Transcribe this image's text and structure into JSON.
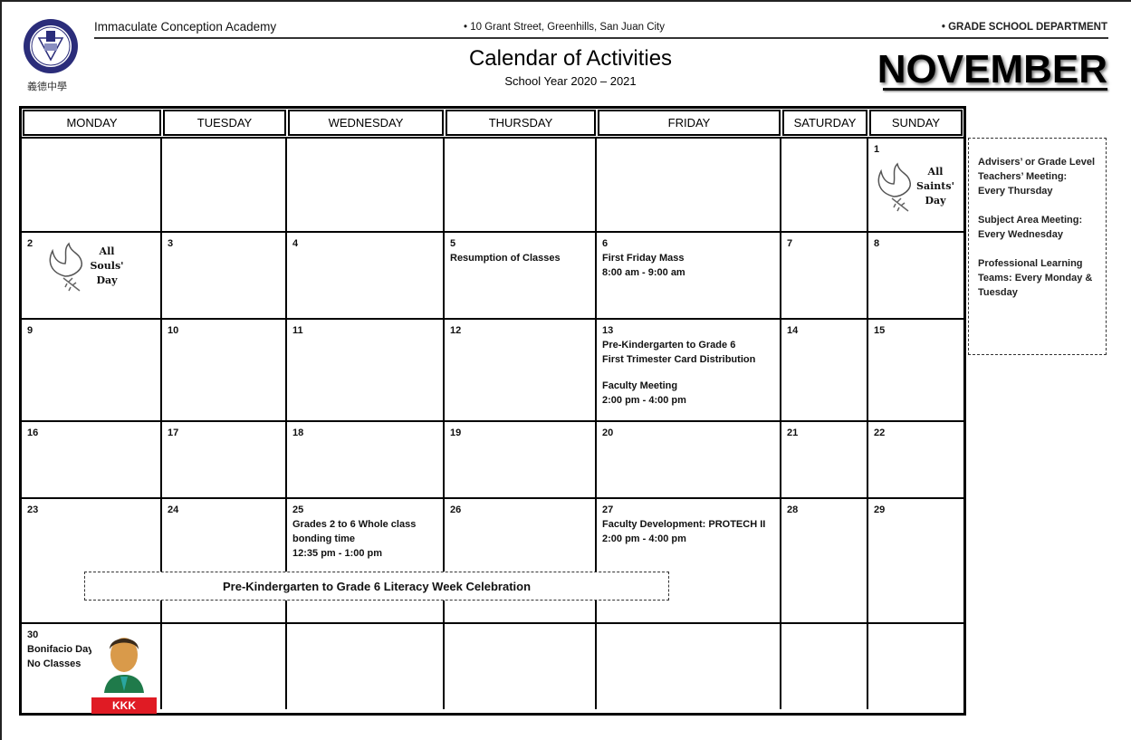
{
  "header": {
    "school_name": "Immaculate Conception Academy",
    "logo_chinese_text": "義德中學",
    "address": "• 10 Grant Street, Greenhills, San Juan City",
    "department": "• GRADE SCHOOL DEPARTMENT",
    "title": "Calendar of Activities",
    "subtitle": "School Year 2020 – 2021",
    "month": "NOVEMBER"
  },
  "calendar": {
    "days": [
      "MONDAY",
      "TUESDAY",
      "WEDNESDAY",
      "THURSDAY",
      "FRIDAY",
      "SATURDAY",
      "SUNDAY"
    ],
    "weeks": [
      [
        {
          "day": ""
        },
        {
          "day": ""
        },
        {
          "day": ""
        },
        {
          "day": ""
        },
        {
          "day": ""
        },
        {
          "day": ""
        },
        {
          "day": "1",
          "image": "dove-icon",
          "image_label": "All Saints' Day"
        }
      ],
      [
        {
          "day": "2",
          "image": "dove-icon",
          "image_label": "All Souls' Day"
        },
        {
          "day": "3"
        },
        {
          "day": "4"
        },
        {
          "day": "5",
          "events": [
            [
              "Resumption of Classes"
            ]
          ]
        },
        {
          "day": "6",
          "events": [
            [
              "First Friday Mass",
              "8:00 am - 9:00 am"
            ]
          ]
        },
        {
          "day": "7"
        },
        {
          "day": "8"
        }
      ],
      [
        {
          "day": "9"
        },
        {
          "day": "10"
        },
        {
          "day": "11"
        },
        {
          "day": "12"
        },
        {
          "day": "13",
          "events": [
            [
              "Pre-Kindergarten to Grade 6",
              "First Trimester Card Distribution"
            ],
            [
              "Faculty Meeting",
              "2:00 pm - 4:00 pm"
            ]
          ]
        },
        {
          "day": "14"
        },
        {
          "day": "15"
        }
      ],
      [
        {
          "day": "16"
        },
        {
          "day": "17"
        },
        {
          "day": "18"
        },
        {
          "day": "19"
        },
        {
          "day": "20"
        },
        {
          "day": "21"
        },
        {
          "day": "22"
        }
      ],
      [
        {
          "day": "23"
        },
        {
          "day": "24"
        },
        {
          "day": "25",
          "events": [
            [
              "Grades 2 to 6 Whole class",
              "bonding time",
              "12:35 pm - 1:00 pm"
            ]
          ]
        },
        {
          "day": "26"
        },
        {
          "day": "27",
          "events": [
            [
              "Faculty Development: PROTECH II",
              "2:00 pm - 4:00 pm"
            ]
          ]
        },
        {
          "day": "28"
        },
        {
          "day": "29"
        }
      ],
      [
        {
          "day": "30",
          "events": [
            [
              "Bonifacio Day",
              "No Classes"
            ]
          ],
          "image": "bonifacio-portrait",
          "image_label": "KKK"
        },
        {
          "day": ""
        },
        {
          "day": ""
        },
        {
          "day": ""
        },
        {
          "day": ""
        },
        {
          "day": ""
        },
        {
          "day": ""
        }
      ]
    ],
    "banner": "Pre-Kindergarten to Grade 6 Literacy Week Celebration"
  },
  "notes": [
    "Advisers’ or Grade Level Teachers’ Meeting: Every Thursday",
    "Subject Area Meeting: Every Wednesday",
    "Professional Learning Teams: Every Monday & Tuesday"
  ]
}
